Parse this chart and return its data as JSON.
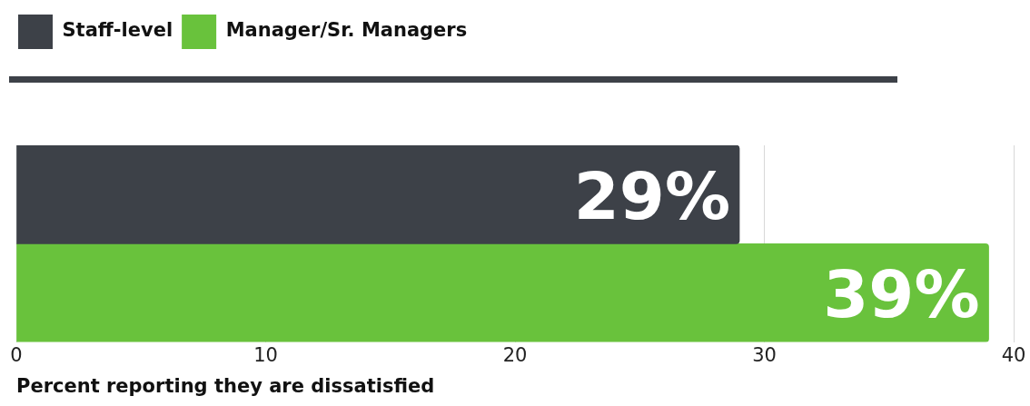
{
  "chart_data": {
    "type": "bar",
    "orientation": "horizontal",
    "categories": [
      null
    ],
    "series": [
      {
        "name": "Staff-level",
        "color": "#3d4148",
        "values": [
          29
        ],
        "value_labels": [
          "29%"
        ]
      },
      {
        "name": "Manager/Sr. Managers",
        "color": "#69c23c",
        "values": [
          39
        ],
        "value_labels": [
          "39%"
        ]
      }
    ],
    "xlim": [
      0,
      40
    ],
    "xticks": [
      0,
      10,
      20,
      30,
      40
    ],
    "xlabel": "Percent reporting they are dissatisfied",
    "grid": "x",
    "legend": "top left"
  }
}
